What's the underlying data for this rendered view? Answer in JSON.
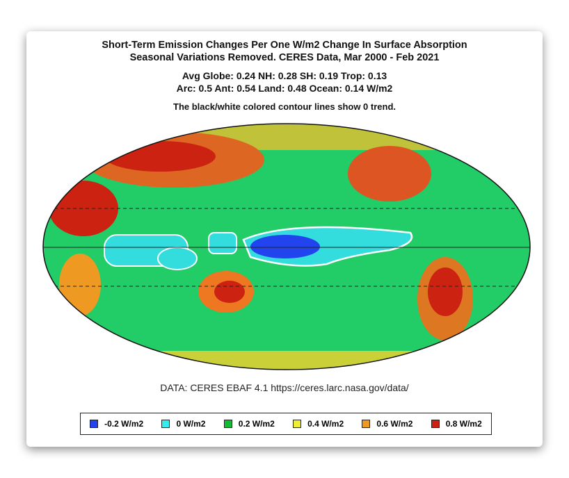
{
  "title": [
    "Short-Term Emission Changes Per One W/m2 Change In Surface Absorption",
    "Seasonal Variations Removed. CERES Data, Mar 2000 - Feb 2021"
  ],
  "stats": [
    "Avg Globe: 0.24  NH: 0.28  SH: 0.19  Trop: 0.13",
    "Arc: 0.5  Ant: 0.54  Land: 0.48 Ocean: 0.14 W/m2"
  ],
  "note": "The black/white colored contour lines show 0 trend.",
  "source": "DATA: CERES EBAF 4.1 https://ceres.larc.nasa.gov/data/",
  "map": {
    "projection": "mollweide",
    "center_longitude": "160E",
    "dashed_latitudes": [
      "30N",
      "30S"
    ],
    "contour": "0 trend",
    "background_color": "#22cc66"
  },
  "legend": [
    {
      "label": "-0.2 W/m2",
      "color": "#2244ee"
    },
    {
      "label": "0 W/m2",
      "color": "#33eeee"
    },
    {
      "label": "0.2 W/m2",
      "color": "#11bb33"
    },
    {
      "label": "0.4 W/m2",
      "color": "#eeee33"
    },
    {
      "label": "0.6 W/m2",
      "color": "#ee9922"
    },
    {
      "label": "0.8 W/m2",
      "color": "#cc2211"
    }
  ]
}
